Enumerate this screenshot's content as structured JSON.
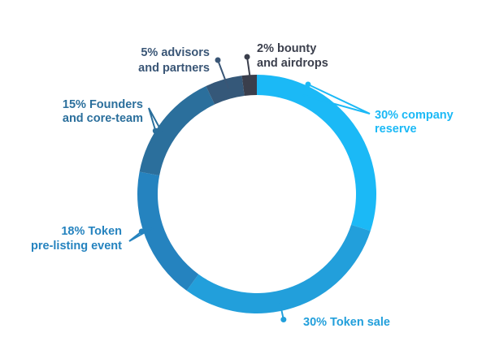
{
  "chart_data": {
    "type": "pie",
    "variant": "donut",
    "slices": [
      {
        "value": 30,
        "line1": "30% company",
        "line2": "reserve",
        "color": "#1bb9f6",
        "label_color": "#1bb9f6"
      },
      {
        "value": 30,
        "line1": "30% Token sale",
        "line2": "",
        "color": "#229fdb",
        "label_color": "#229fdb"
      },
      {
        "value": 18,
        "line1": "18% Token",
        "line2": "pre-listing event",
        "color": "#2583bf",
        "label_color": "#2583bf"
      },
      {
        "value": 15,
        "line1": "15% Founders",
        "line2": "and core-team",
        "color": "#2b6f9c",
        "label_color": "#2b6f9c"
      },
      {
        "value": 5,
        "line1": "5% advisors",
        "line2": "and partners",
        "color": "#355879",
        "label_color": "#3a5676"
      },
      {
        "value": 2,
        "line1": "2% bounty",
        "line2": "and airdrops",
        "color": "#3a3e4c",
        "label_color": "#3b3f4c"
      }
    ]
  }
}
